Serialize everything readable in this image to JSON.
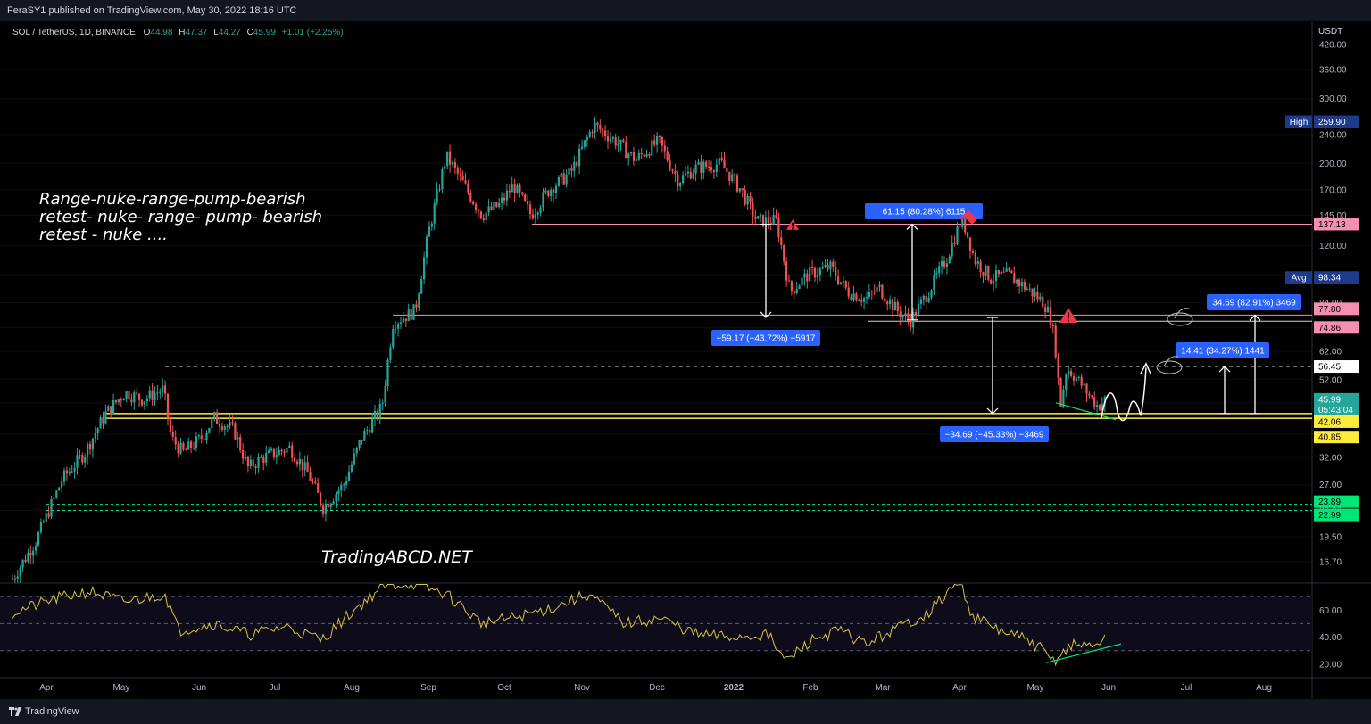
{
  "header": {
    "published": "FeraSY1 published on TradingView.com, May 30, 2022 18:16 UTC"
  },
  "footer": {
    "brand": "TradingView"
  },
  "colors": {
    "bg": "#000000",
    "up": "#26a69a",
    "down": "#ef5350",
    "yellow": "#ffeb3b",
    "rsi": "#d4c34a",
    "label_blue": "#2962ff",
    "support_green": "#00e676",
    "resistance_pink": "#f48fb1"
  },
  "chart_data": {
    "type": "candlestick",
    "symbol_line": {
      "symbol": "SOL / TetherUS, 1D, BINANCE",
      "o_label": "O",
      "o": "44.98",
      "h_label": "H",
      "h": "47.37",
      "l_label": "L",
      "l": "44.27",
      "c_label": "C",
      "c": "45.99",
      "change": "+1.01 (+2.25%)"
    },
    "y_axis": {
      "currency": "USDT",
      "scale": "log",
      "range": [
        14.5,
        470
      ],
      "ticks": [
        "420.00",
        "360.00",
        "300.00",
        "240.00",
        "200.00",
        "170.00",
        "145.00",
        "120.00",
        "100.00",
        "84.00",
        "72.00",
        "62.00",
        "52.00",
        "45.00",
        "37.00",
        "32.00",
        "27.00",
        "23.00",
        "19.50",
        "16.70"
      ]
    },
    "x_axis": {
      "labels": [
        "Apr",
        "May",
        "Jun",
        "Jul",
        "Aug",
        "Sep",
        "Oct",
        "Nov",
        "Dec",
        "2022",
        "Feb",
        "Mar",
        "Apr",
        "May",
        "Jun",
        "Jul",
        "Aug"
      ]
    },
    "price_labels": [
      {
        "name": "high",
        "tag": "High",
        "value": "259.90"
      },
      {
        "name": "level-137",
        "value": "137.13"
      },
      {
        "name": "avg",
        "tag": "Avg",
        "value": "98.34"
      },
      {
        "name": "level-77",
        "value": "77.80"
      },
      {
        "name": "level-74",
        "value": "74.86"
      },
      {
        "name": "level-56",
        "value": "56.45"
      },
      {
        "name": "last",
        "value": "45.99",
        "countdown": "05:43:04"
      },
      {
        "name": "level-42",
        "value": "42.06"
      },
      {
        "name": "level-40",
        "value": "40.85"
      },
      {
        "name": "level-23",
        "value": "23.89"
      },
      {
        "name": "level-22",
        "value": "22.99"
      }
    ],
    "levels": [
      137.13,
      77.8,
      74.86,
      56.45,
      42.06,
      40.85,
      23.89,
      22.99
    ],
    "measurements": [
      {
        "name": "measure-drop-1",
        "text": "−59.17 (−43.72%) −5917"
      },
      {
        "name": "measure-rise-1",
        "text": "61.15 (80.28%) 6115"
      },
      {
        "name": "measure-drop-2",
        "text": "−34.69 (−45.33%) −3469"
      },
      {
        "name": "measure-proj-1",
        "text": "14.41 (34.27%) 1441"
      },
      {
        "name": "measure-proj-2",
        "text": "34.69 (82.91%) 3469"
      }
    ],
    "annotations": {
      "comment": [
        "Range-nuke-range-pump-bearish",
        "retest- nuke- range- pump- bearish",
        "retest - nuke ...."
      ],
      "watermark": "TradingABCD.NET"
    },
    "rsi": {
      "ticks": [
        "60.00",
        "40.00",
        "20.00"
      ],
      "range": [
        10,
        80
      ],
      "bands": [
        70,
        50,
        30
      ]
    }
  }
}
